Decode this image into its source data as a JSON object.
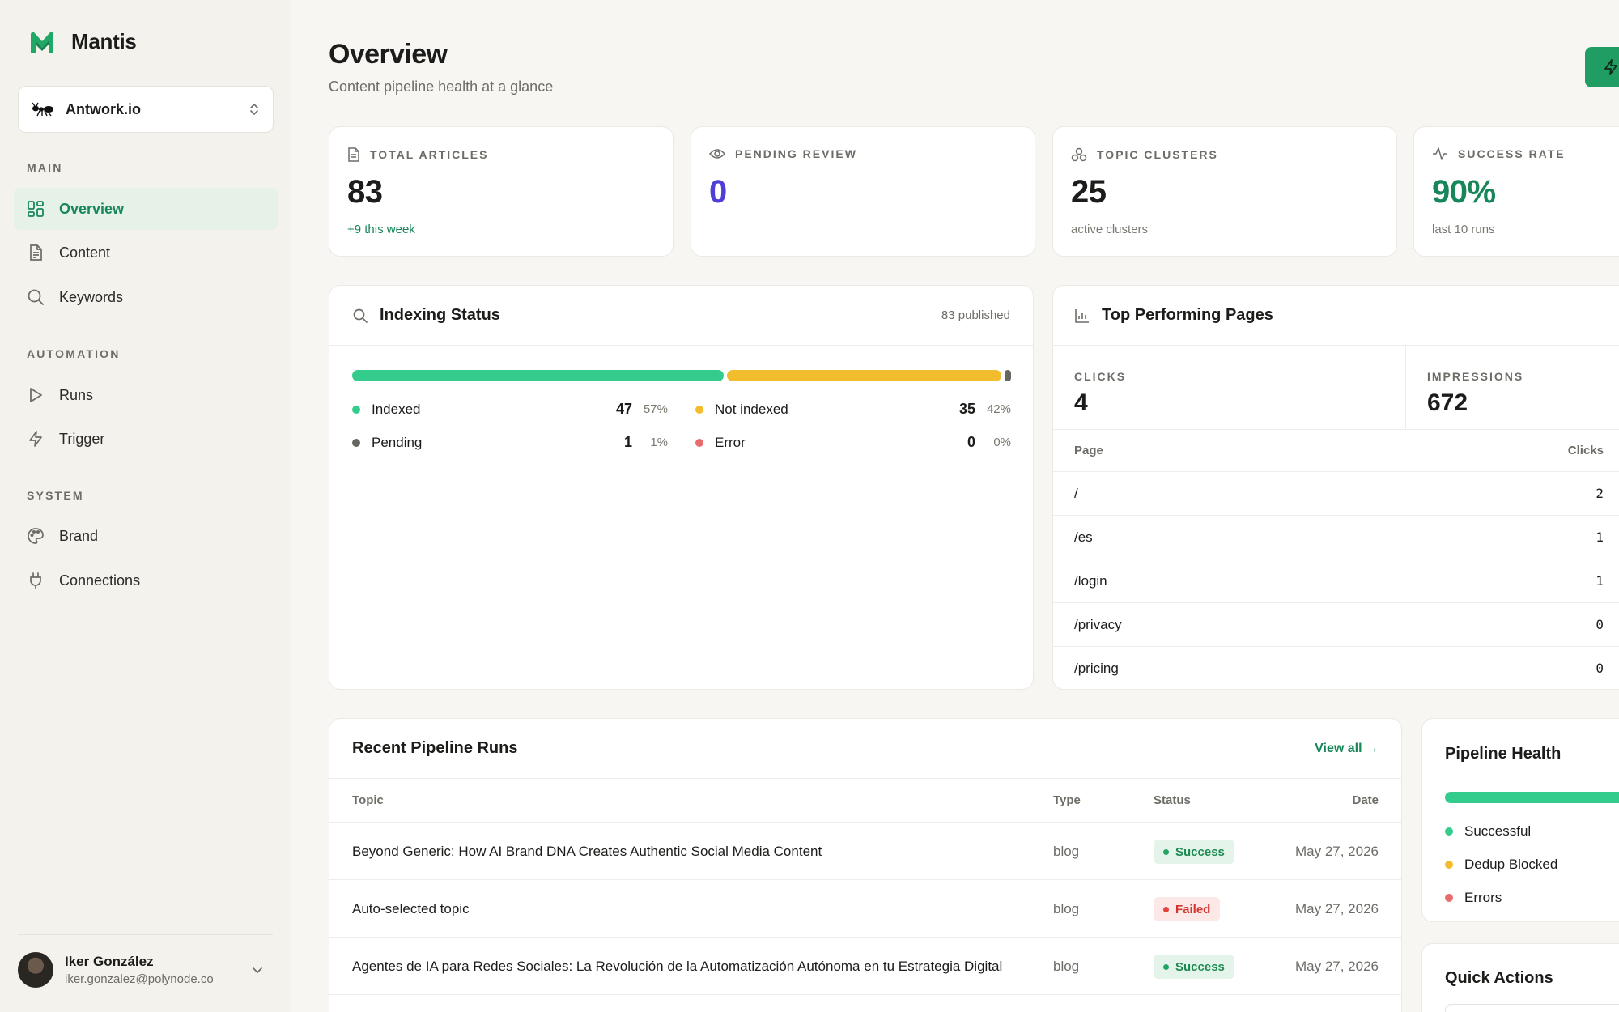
{
  "app": {
    "name": "Mantis",
    "workspace": "Antwork.io"
  },
  "nav": {
    "main_label": "MAIN",
    "automation_label": "AUTOMATION",
    "system_label": "SYSTEM",
    "items": [
      {
        "label": "Overview",
        "icon": "grid-icon",
        "active": true
      },
      {
        "label": "Content",
        "icon": "document-icon"
      },
      {
        "label": "Keywords",
        "icon": "search-icon"
      },
      {
        "label": "Runs",
        "icon": "play-icon"
      },
      {
        "label": "Trigger",
        "icon": "bolt-icon"
      },
      {
        "label": "Brand",
        "icon": "palette-icon"
      },
      {
        "label": "Connections",
        "icon": "plug-icon"
      }
    ]
  },
  "user": {
    "name": "Iker González",
    "email": "iker.gonzalez@polynode.co"
  },
  "header": {
    "title": "Overview",
    "subtitle": "Content pipeline health at a glance"
  },
  "stats": [
    {
      "label": "TOTAL ARTICLES",
      "value": "83",
      "foot": "+9 this week",
      "icon": "document-icon"
    },
    {
      "label": "PENDING REVIEW",
      "value": "0",
      "foot": "",
      "icon": "eye-icon"
    },
    {
      "label": "TOPIC CLUSTERS",
      "value": "25",
      "foot": "active clusters",
      "icon": "clusters-icon"
    },
    {
      "label": "SUCCESS RATE",
      "value": "90%",
      "foot": "last 10 runs",
      "icon": "activity-icon"
    }
  ],
  "indexing": {
    "title": "Indexing Status",
    "published": "83 published",
    "items": [
      {
        "label": "Indexed",
        "count": "47",
        "pct": "57%",
        "color": "#34cc8c",
        "fraction": 0.57
      },
      {
        "label": "Not indexed",
        "count": "35",
        "pct": "42%",
        "color": "#f2bd2c",
        "fraction": 0.42
      },
      {
        "label": "Pending",
        "count": "1",
        "pct": "1%",
        "color": "#666560",
        "fraction": 0.01
      },
      {
        "label": "Error",
        "count": "0",
        "pct": "0%",
        "color": "#ea6b6b",
        "fraction": 0
      }
    ]
  },
  "top_pages": {
    "title": "Top Performing Pages",
    "clicks_label": "CLICKS",
    "clicks": "4",
    "impressions_label": "IMPRESSIONS",
    "impressions": "672",
    "col_page": "Page",
    "col_clicks": "Clicks",
    "rows": [
      {
        "page": "/",
        "clicks": "2"
      },
      {
        "page": "/es",
        "clicks": "1"
      },
      {
        "page": "/login",
        "clicks": "1"
      },
      {
        "page": "/privacy",
        "clicks": "0"
      },
      {
        "page": "/pricing",
        "clicks": "0"
      }
    ]
  },
  "runs": {
    "title": "Recent Pipeline Runs",
    "view_all": "View all →",
    "cols": {
      "topic": "Topic",
      "type": "Type",
      "status": "Status",
      "date": "Date"
    },
    "rows": [
      {
        "topic": "Beyond Generic: How AI Brand DNA Creates Authentic Social Media Content",
        "type": "blog",
        "status": "Success",
        "date": "May 27, 2026"
      },
      {
        "topic": "Auto-selected topic",
        "type": "blog",
        "status": "Failed",
        "date": "May 27, 2026"
      },
      {
        "topic": "Agentes de IA para Redes Sociales: La Revolución de la Automatización Autónoma en tu Estrategia Digital",
        "type": "blog",
        "status": "Success",
        "date": "May 27, 2026"
      }
    ]
  },
  "pipeline_health": {
    "title": "Pipeline Health",
    "items": [
      {
        "label": "Successful",
        "color": "#34cc8c"
      },
      {
        "label": "Dedup Blocked",
        "color": "#f2bd2c"
      },
      {
        "label": "Errors",
        "color": "#ea6b6b"
      }
    ]
  },
  "quick_actions": {
    "title": "Quick Actions"
  },
  "colors": {
    "accent": "#17875a",
    "pending_value": "#4f3fd6",
    "success_value": "#17875a"
  }
}
